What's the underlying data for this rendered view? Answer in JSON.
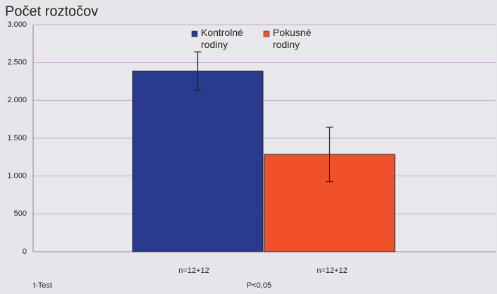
{
  "chart_data": {
    "type": "bar",
    "title": "Počet roztočov",
    "series": [
      {
        "name": "Kontrolné rodiny",
        "color": "#2a3a8e",
        "values": [
          2385
        ],
        "errors": [
          255
        ]
      },
      {
        "name": "Pokusné rodiny",
        "color": "#f0502a",
        "values": [
          1286
        ],
        "errors": [
          360
        ]
      }
    ],
    "sample_labels": [
      "n=12+12",
      "n=12+12"
    ],
    "footnotes": [
      "t-Test",
      "P<0,05"
    ],
    "ylim": [
      0,
      3000
    ],
    "yticks": [
      0,
      500,
      {
        "value": 1000,
        "label": "1.000"
      },
      {
        "value": 1500,
        "label": "1.500"
      },
      {
        "value": 2000,
        "label": "2.000"
      },
      {
        "value": 2500,
        "label": "2.500"
      },
      {
        "value": 3000,
        "label": "3.000"
      }
    ],
    "grid": true
  }
}
